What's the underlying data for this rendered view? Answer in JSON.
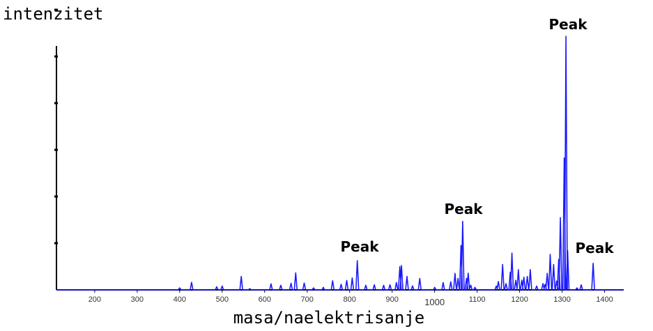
{
  "chart_data": {
    "type": "line",
    "title": "",
    "xlabel": "masa/naelektrisanje",
    "ylabel": "intenzitet",
    "xlim": [
      110,
      1445
    ],
    "ylim": [
      0,
      100
    ],
    "x_ticks": [
      200,
      300,
      400,
      500,
      600,
      700,
      800,
      900,
      1000,
      1100,
      1200,
      1300,
      1400
    ],
    "color": "#1a1aff",
    "grid": false,
    "series": [
      {
        "points": [
          [
            400,
            0.8
          ],
          [
            428,
            3.0
          ],
          [
            487,
            1.2
          ],
          [
            500,
            1.5
          ],
          [
            545,
            5.3
          ],
          [
            565,
            0.5
          ],
          [
            615,
            2.4
          ],
          [
            638,
            1.8
          ],
          [
            662,
            2.6
          ],
          [
            673,
            6.7
          ],
          [
            693,
            2.7
          ],
          [
            715,
            0.8
          ],
          [
            738,
            1.0
          ],
          [
            760,
            3.6
          ],
          [
            780,
            2.2
          ],
          [
            793,
            3.7
          ],
          [
            806,
            4.7
          ],
          [
            818,
            11.5
          ],
          [
            838,
            1.8
          ],
          [
            858,
            2.0
          ],
          [
            880,
            1.8
          ],
          [
            895,
            2.0
          ],
          [
            910,
            2.9
          ],
          [
            918,
            9.2
          ],
          [
            922,
            9.6
          ],
          [
            935,
            5.3
          ],
          [
            948,
            1.6
          ],
          [
            965,
            4.5
          ],
          [
            1000,
            1.0
          ],
          [
            1020,
            2.9
          ],
          [
            1038,
            3.2
          ],
          [
            1048,
            6.5
          ],
          [
            1055,
            4.5
          ],
          [
            1062,
            17.5
          ],
          [
            1066,
            27.0
          ],
          [
            1075,
            4.5
          ],
          [
            1079,
            6.6
          ],
          [
            1085,
            1.9
          ],
          [
            1095,
            1.0
          ],
          [
            1145,
            1.5
          ],
          [
            1150,
            3.3
          ],
          [
            1160,
            10.0
          ],
          [
            1168,
            2.5
          ],
          [
            1178,
            7.0
          ],
          [
            1182,
            14.5
          ],
          [
            1191,
            3.8
          ],
          [
            1197,
            8.0
          ],
          [
            1205,
            3.8
          ],
          [
            1210,
            5.0
          ],
          [
            1218,
            5.3
          ],
          [
            1225,
            8.0
          ],
          [
            1240,
            1.5
          ],
          [
            1255,
            2.5
          ],
          [
            1260,
            2.2
          ],
          [
            1265,
            6.5
          ],
          [
            1272,
            14.0
          ],
          [
            1280,
            10.0
          ],
          [
            1287,
            3.5
          ],
          [
            1292,
            12.0
          ],
          [
            1296,
            28.5
          ],
          [
            1305,
            52.0
          ],
          [
            1309,
            100.0
          ],
          [
            1313,
            15.5
          ],
          [
            1335,
            0.8
          ],
          [
            1345,
            2.0
          ],
          [
            1373,
            10.5
          ]
        ]
      }
    ],
    "annotations": [
      "Peak",
      "Peak",
      "Peak",
      "Peak"
    ]
  }
}
